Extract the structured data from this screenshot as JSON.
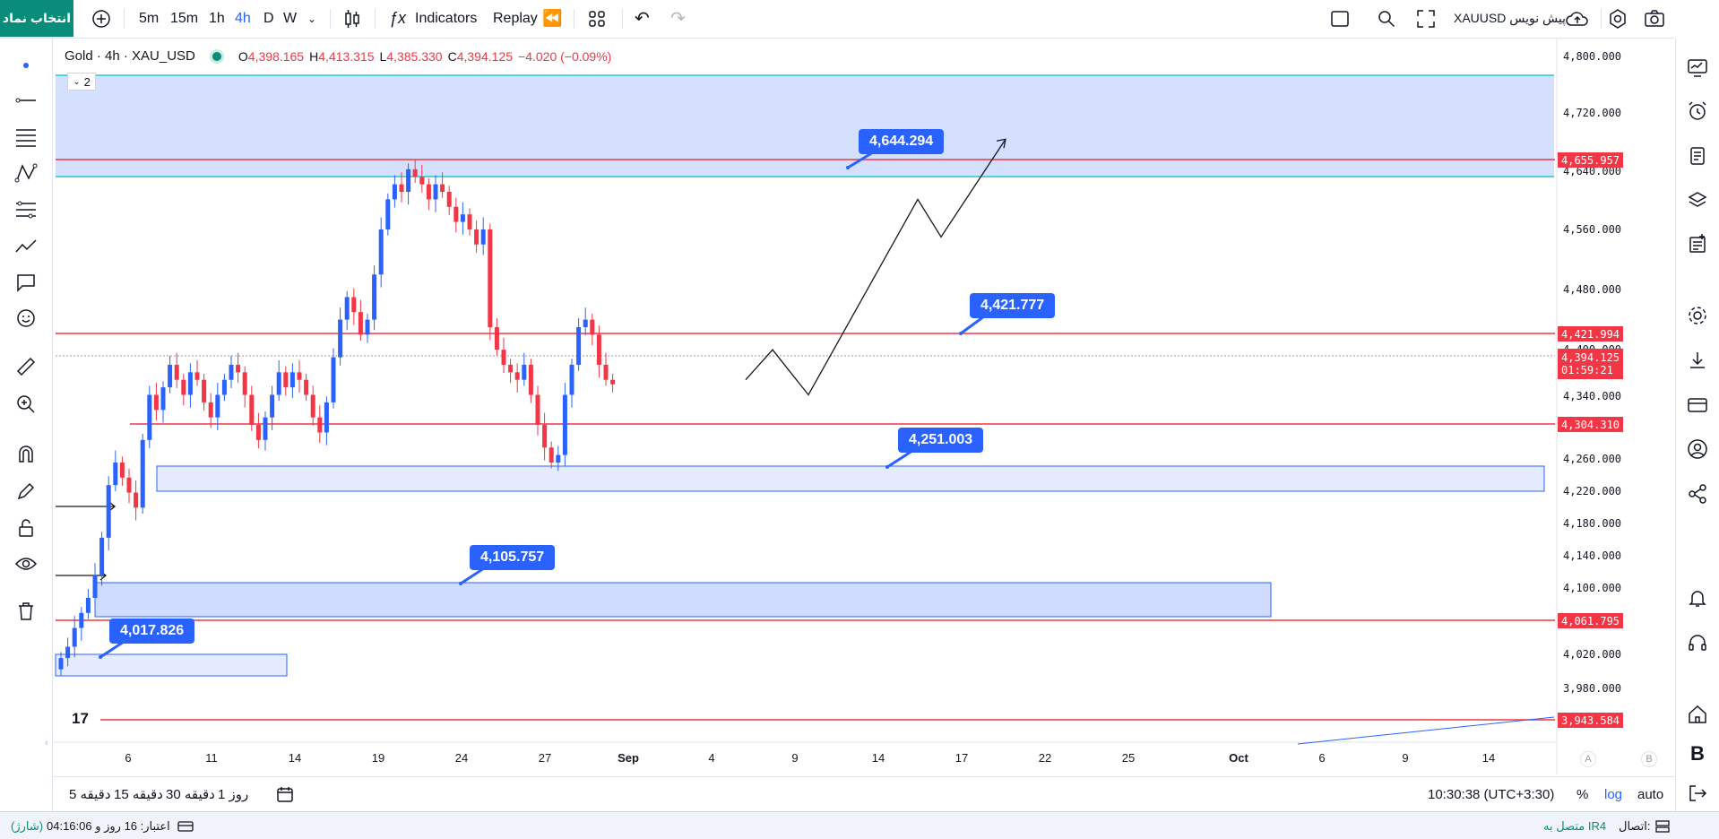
{
  "topbar": {
    "symbol_button": "انتخاب نماد",
    "timeframes": [
      "5m",
      "15m",
      "1h",
      "4h",
      "D",
      "W"
    ],
    "active_timeframe": "4h",
    "indicators": "Indicators",
    "replay": "Replay",
    "symbol_text": "XAUUSD پیش نویس"
  },
  "legend": {
    "title": "Gold · 4h · XAU_USD",
    "o_label": "O",
    "o_value": "4,398.165",
    "h_label": "H",
    "h_value": "4,413.315",
    "l_label": "L",
    "l_value": "4,385.330",
    "c_label": "C",
    "c_value": "4,394.125",
    "change": "−4.020 (−0.09%)",
    "collapse_count": "2"
  },
  "price_axis": {
    "ticks": [
      "4,800.000",
      "4,720.000",
      "4,640.000",
      "4,560.000",
      "4,480.000",
      "4,400.000",
      "4,340.000",
      "4,260.000",
      "4,220.000",
      "4,180.000",
      "4,140.000",
      "4,100.000",
      "4,020.000",
      "3,980.000"
    ],
    "tags": [
      {
        "value": "4,655.957"
      },
      {
        "value": "4,421.994"
      },
      {
        "value": "4,394.125",
        "sub": "01:59:21"
      },
      {
        "value": "4,304.310"
      },
      {
        "value": "4,061.795"
      },
      {
        "value": "3,943.584"
      }
    ]
  },
  "time_axis": {
    "labels": [
      "6",
      "11",
      "14",
      "19",
      "24",
      "27",
      "Sep",
      "4",
      "9",
      "14",
      "17",
      "22",
      "25",
      "Oct",
      "6",
      "9",
      "14"
    ],
    "corner_a": "A",
    "corner_b": "B"
  },
  "callouts": [
    "4,644.294",
    "4,421.777",
    "4,251.003",
    "4,105.757",
    "4,017.826"
  ],
  "bottombar": {
    "ranges": [
      "5 دقیقه",
      "15 دقیقه",
      "30 دقیقه",
      "1 روز"
    ],
    "time": "10:30:38 (UTC+3:30)",
    "pct": "%",
    "log": "log",
    "auto": "auto"
  },
  "statusbar": {
    "left_text": "اعتبار: 16 روز و 04:16:06",
    "left_charge": "(شارژ)",
    "right_label": "اتصال:",
    "right_value": "متصل به IR4"
  },
  "colors": {
    "accent": "#2962ff",
    "red": "#f23645",
    "green": "#0a8c7a",
    "zone": "#bfd0ff"
  },
  "chart_data": {
    "type": "candlestick",
    "symbol": "Gold · 4h · XAU_USD",
    "ylim": [
      3930,
      4830
    ],
    "levels": [
      4655.957,
      4421.994,
      4304.31,
      4061.795,
      3943.584
    ],
    "projection_path": [
      4400,
      4440,
      4380,
      4640,
      4590,
      4720
    ],
    "candles_close": [
      4030,
      4045,
      4070,
      4090,
      4110,
      4140,
      4190,
      4260,
      4290,
      4270,
      4250,
      4230,
      4320,
      4380,
      4360,
      4390,
      4420,
      4400,
      4380,
      4410,
      4400,
      4370,
      4350,
      4380,
      4400,
      4420,
      4410,
      4380,
      4340,
      4320,
      4350,
      4380,
      4410,
      4390,
      4410,
      4400,
      4380,
      4350,
      4330,
      4370,
      4430,
      4480,
      4510,
      4490,
      4460,
      4480,
      4540,
      4600,
      4640,
      4660,
      4650,
      4680,
      4670,
      4660,
      4640,
      4660,
      4650,
      4630,
      4610,
      4620,
      4600,
      4580,
      4600,
      4470,
      4440,
      4420,
      4410,
      4400,
      4420,
      4380,
      4340,
      4310,
      4290,
      4300,
      4380,
      4420,
      4470,
      4480,
      4460,
      4420,
      4400,
      4394
    ]
  }
}
